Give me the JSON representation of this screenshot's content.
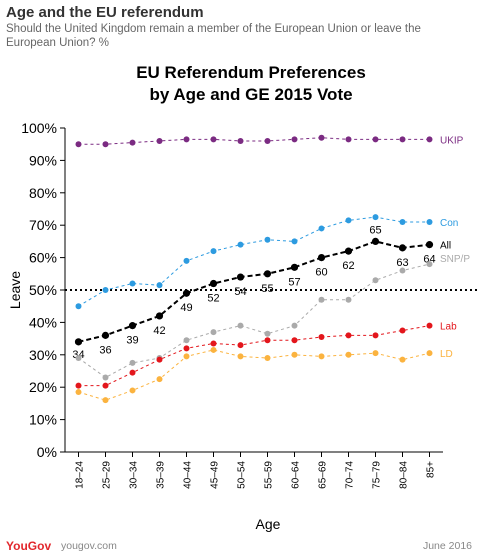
{
  "header": {
    "title": "Age and the EU referendum",
    "subtitle": "Should the United Kingdom remain a member of the European Union or leave the European Union? %"
  },
  "footer": {
    "brand": "YouGov",
    "site": "yougov.com",
    "date": "June 2016"
  },
  "colors": {
    "UKIP": "#7b2b82",
    "Con": "#2d9be0",
    "All": "#000000",
    "SNP/P": "#aaaaaa",
    "Lab": "#e3161c",
    "LD": "#fbb33f"
  },
  "chart_data": {
    "type": "line",
    "title_lines": [
      "EU Referendum Preferences",
      "by Age and GE 2015 Vote"
    ],
    "xlabel": "Age",
    "ylabel": "Leave",
    "categories": [
      "18–24",
      "25–29",
      "30–34",
      "35–39",
      "40–44",
      "45–49",
      "50–54",
      "55–59",
      "60–64",
      "65–69",
      "70–74",
      "75–79",
      "80–84",
      "85+"
    ],
    "ylim": [
      0,
      100
    ],
    "yticks": [
      "0%",
      "10%",
      "20%",
      "30%",
      "40%",
      "50%",
      "60%",
      "70%",
      "80%",
      "90%",
      "100%"
    ],
    "reference_line": 50,
    "series": [
      {
        "name": "UKIP",
        "values": [
          95,
          95,
          95.5,
          96,
          96.5,
          96.5,
          96,
          96,
          96.5,
          97,
          96.5,
          96.5,
          96.5,
          96.5
        ]
      },
      {
        "name": "Con",
        "values": [
          45,
          50,
          52,
          51.5,
          59,
          62,
          64,
          65.5,
          65,
          69,
          71.5,
          72.5,
          71,
          71
        ]
      },
      {
        "name": "All",
        "values": [
          34,
          36,
          39,
          42,
          49,
          52,
          54,
          55,
          57,
          60,
          62,
          65,
          63,
          64
        ],
        "point_labels": [
          "34",
          "36",
          "39",
          "42",
          "49",
          "52",
          "54",
          "55",
          "57",
          "60",
          "62",
          "65",
          "63",
          "64"
        ]
      },
      {
        "name": "SNP/P",
        "values": [
          29,
          23,
          27.5,
          29,
          34.5,
          37,
          39,
          36.5,
          39,
          47,
          47,
          53,
          56,
          58
        ]
      },
      {
        "name": "Lab",
        "values": [
          20.5,
          20.5,
          24.5,
          28.5,
          32,
          33.5,
          33,
          34.5,
          34.5,
          35.5,
          36,
          36,
          37.5,
          39
        ]
      },
      {
        "name": "LD",
        "values": [
          18.5,
          16,
          19,
          22.5,
          29.5,
          31.5,
          29.5,
          29,
          30,
          29.5,
          30,
          30.5,
          28.5,
          30.5
        ]
      }
    ]
  }
}
